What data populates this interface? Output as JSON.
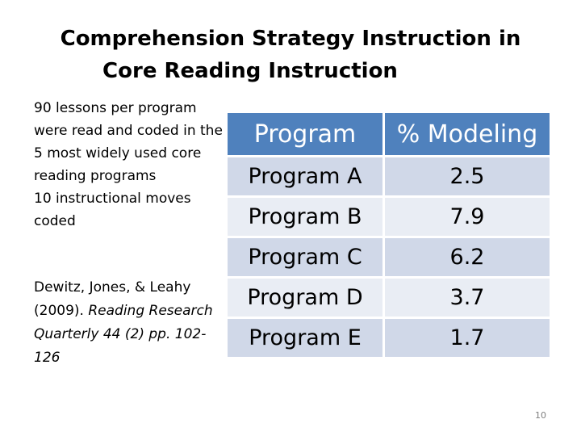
{
  "title": {
    "line1": "Comprehension Strategy Instruction in",
    "line2": "Core Reading Instruction"
  },
  "left": {
    "bullet1": "90 lessons per program were read and coded in the 5 most widely used core reading programs",
    "bullet2": "10 instructional moves coded",
    "citation_authors": "Dewitz, Jones, & Leahy (2009). ",
    "citation_source": "Reading Research Quarterly 44 (2) pp. 102-126"
  },
  "table": {
    "headers": [
      "Program",
      "% Modeling"
    ],
    "rows": [
      [
        "Program A",
        "2.5"
      ],
      [
        "Program B",
        "7.9"
      ],
      [
        "Program C",
        "6.2"
      ],
      [
        "Program D",
        "3.7"
      ],
      [
        "Program E",
        "1.7"
      ]
    ]
  },
  "colors": {
    "header_fill": "#4f81bd",
    "row_fill_odd": "#d0d8e8",
    "row_fill_even": "#e9edf4",
    "page_number": "#7f7f7f"
  },
  "page_number": "10"
}
